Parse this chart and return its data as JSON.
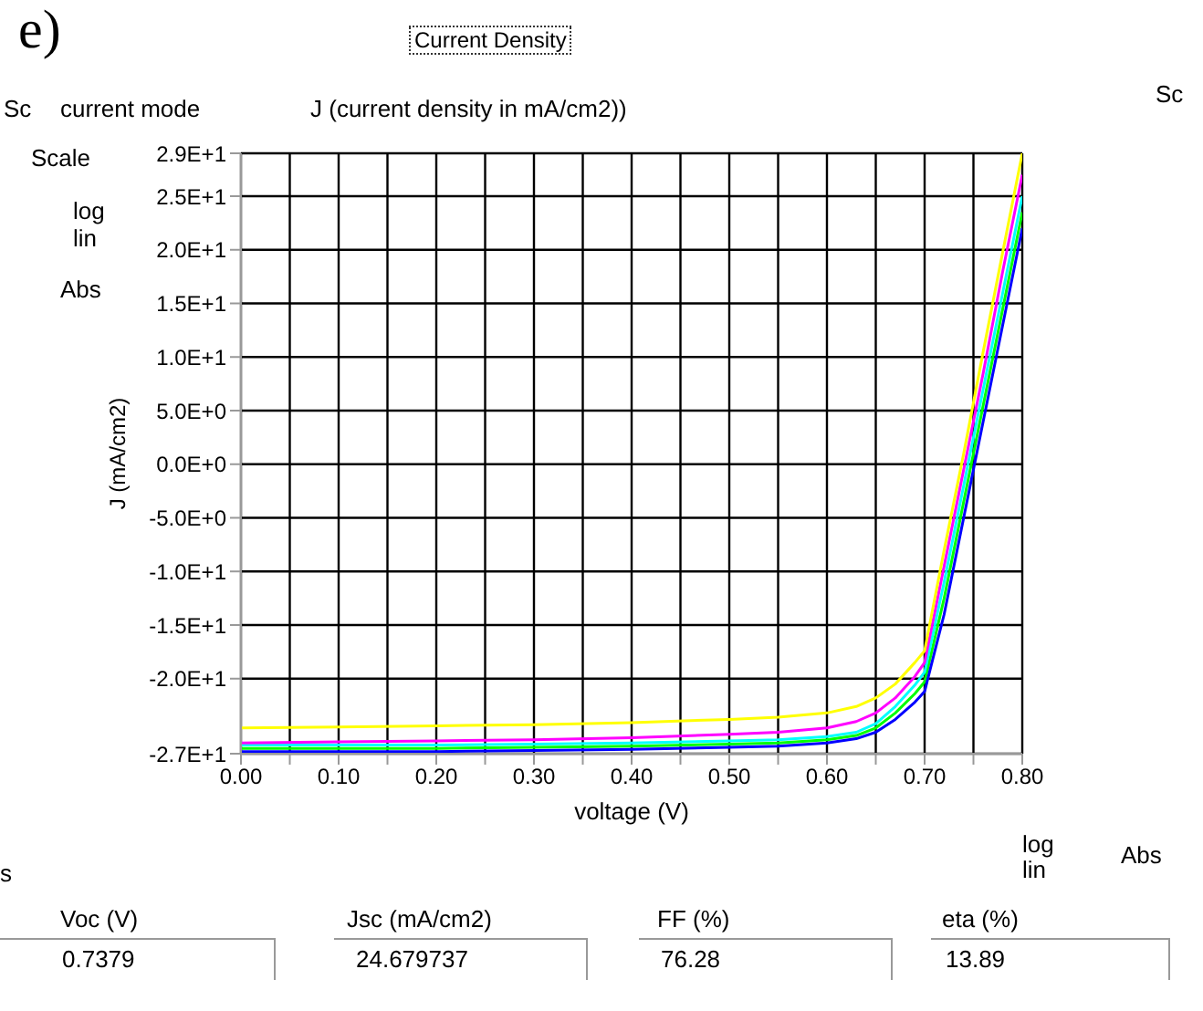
{
  "chart_data": {
    "type": "line",
    "title": "Current Density",
    "xlabel": "voltage (V)",
    "ylabel": "J (mA/cm2)",
    "x": [
      0,
      0.1,
      0.2,
      0.3,
      0.4,
      0.5,
      0.55,
      0.6,
      0.63,
      0.65,
      0.67,
      0.69,
      0.7,
      0.72,
      0.74,
      0.76,
      0.78,
      0.8
    ],
    "series": [
      {
        "color": "#0000ff",
        "values": [
          -26.8,
          -26.8,
          -26.8,
          -26.7,
          -26.6,
          -26.4,
          -26.3,
          -26,
          -25.6,
          -25,
          -23.8,
          -22.2,
          -21.2,
          -14,
          -5,
          4,
          13,
          22
        ]
      },
      {
        "color": "#00ff00",
        "values": [
          -26.5,
          -26.5,
          -26.5,
          -26.4,
          -26.3,
          -26.1,
          -26,
          -25.7,
          -25.3,
          -24.6,
          -23.2,
          -21.4,
          -20.3,
          -12.5,
          -3.5,
          5.5,
          14.5,
          23.5
        ]
      },
      {
        "color": "#00ffff",
        "values": [
          -26.2,
          -26.2,
          -26.2,
          -26.1,
          -26,
          -25.8,
          -25.7,
          -25.4,
          -25,
          -24.2,
          -22.6,
          -20.6,
          -19.4,
          -11,
          -2,
          7,
          16,
          25
        ]
      },
      {
        "color": "#ff00ff",
        "values": [
          -26,
          -25.9,
          -25.8,
          -25.7,
          -25.5,
          -25.2,
          -25,
          -24.6,
          -24,
          -23.2,
          -21.8,
          -19.8,
          -18.5,
          -9.5,
          -0.5,
          8.5,
          18,
          27
        ]
      },
      {
        "color": "#ffff00",
        "values": [
          -24.6,
          -24.5,
          -24.4,
          -24.3,
          -24.1,
          -23.8,
          -23.6,
          -23.2,
          -22.6,
          -21.8,
          -20.5,
          -18.5,
          -17.4,
          -8,
          1,
          10.5,
          19.8,
          29
        ]
      }
    ],
    "xlim": [
      0,
      0.8
    ],
    "xticks": [
      {
        "value": 0,
        "label": "0.00"
      },
      {
        "value": 0.05,
        "label": null
      },
      {
        "value": 0.1,
        "label": "0.10"
      },
      {
        "value": 0.15,
        "label": null
      },
      {
        "value": 0.2,
        "label": "0.20"
      },
      {
        "value": 0.25,
        "label": null
      },
      {
        "value": 0.3,
        "label": "0.30"
      },
      {
        "value": 0.35,
        "label": null
      },
      {
        "value": 0.4,
        "label": "0.40"
      },
      {
        "value": 0.45,
        "label": null
      },
      {
        "value": 0.5,
        "label": "0.50"
      },
      {
        "value": 0.55,
        "label": null
      },
      {
        "value": 0.6,
        "label": "0.60"
      },
      {
        "value": 0.65,
        "label": null
      },
      {
        "value": 0.7,
        "label": "0.70"
      },
      {
        "value": 0.75,
        "label": null
      },
      {
        "value": 0.8,
        "label": "0.80"
      }
    ],
    "ylim": [
      -27,
      29
    ],
    "yticks": [
      {
        "value": 29,
        "label": "2.9E+1"
      },
      {
        "value": 25,
        "label": "2.5E+1"
      },
      {
        "value": 20,
        "label": "2.0E+1"
      },
      {
        "value": 15,
        "label": "1.5E+1"
      },
      {
        "value": 10,
        "label": "1.0E+1"
      },
      {
        "value": 5,
        "label": "5.0E+0"
      },
      {
        "value": 0,
        "label": "0.0E+0"
      },
      {
        "value": -5,
        "label": "-5.0E+0"
      },
      {
        "value": -10,
        "label": "-1.0E+1"
      },
      {
        "value": -15,
        "label": "-1.5E+1"
      },
      {
        "value": -20,
        "label": "-2.0E+1"
      },
      {
        "value": -27,
        "label": "-2.7E+1"
      }
    ],
    "grid": true,
    "legend": false,
    "marker": "none",
    "line_style": "solid",
    "annotations": [
      "e)",
      "Sc",
      "current mode",
      "J (current density in mA/cm2))",
      "Scale",
      "log",
      "lin",
      "Abs",
      "Sc",
      "s",
      "Voc (V)",
      "0.7379",
      "Jsc (mA/cm2)",
      "24.679737",
      "FF  (%)",
      "76.28",
      "eta (%)",
      "13.89",
      "log",
      "lin",
      "Abs"
    ]
  }
}
